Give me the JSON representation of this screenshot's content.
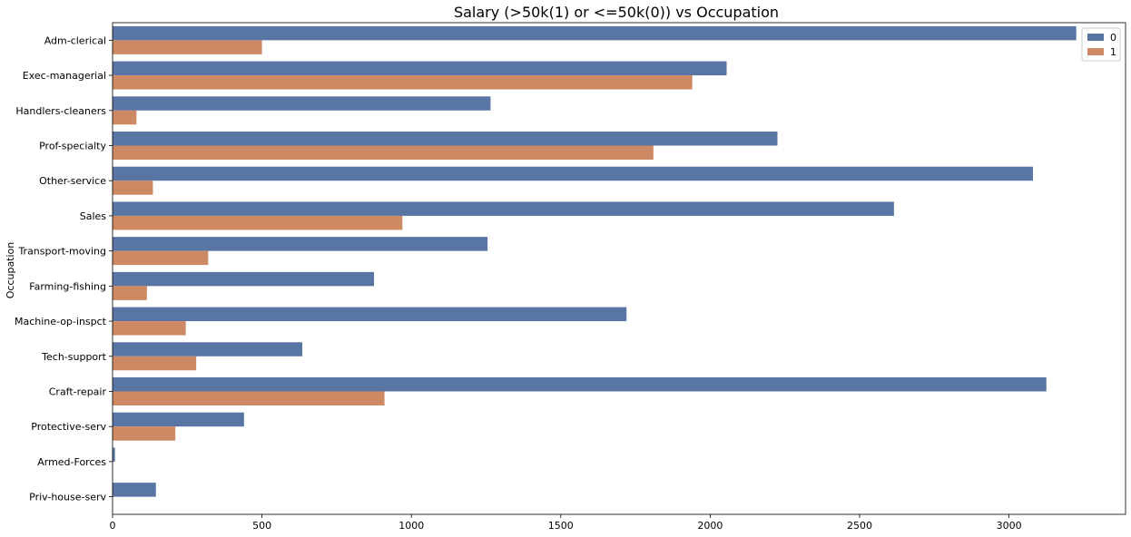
{
  "chart_data": {
    "type": "bar",
    "orientation": "horizontal",
    "title": "Salary (>50k(1) or <=50k(0)) vs Occupation",
    "ylabel": "Occupation",
    "xlabel": "",
    "categories": [
      "Adm-clerical",
      "Exec-managerial",
      "Handlers-cleaners",
      "Prof-specialty",
      "Other-service",
      "Sales",
      "Transport-moving",
      "Farming-fishing",
      "Machine-op-inspct",
      "Tech-support",
      "Craft-repair",
      "Protective-serv",
      "Armed-Forces",
      "Priv-house-serv"
    ],
    "series": [
      {
        "name": "0",
        "color": "#5875a4",
        "values": [
          3225,
          2055,
          1265,
          2225,
          3080,
          2615,
          1255,
          875,
          1720,
          635,
          3125,
          440,
          8,
          145
        ]
      },
      {
        "name": "1",
        "color": "#cc8963",
        "values": [
          500,
          1940,
          80,
          1810,
          135,
          970,
          320,
          115,
          245,
          280,
          910,
          210,
          1,
          1
        ]
      }
    ],
    "xlim": [
      0,
      3390
    ],
    "xticks": [
      0,
      500,
      1000,
      1500,
      2000,
      2500,
      3000
    ],
    "xtick_labels": [
      "0",
      "500",
      "1000",
      "1500",
      "2000",
      "2500",
      "3000"
    ],
    "grid": false,
    "legend": {
      "position": "top-right",
      "entries": [
        "0",
        "1"
      ]
    }
  }
}
